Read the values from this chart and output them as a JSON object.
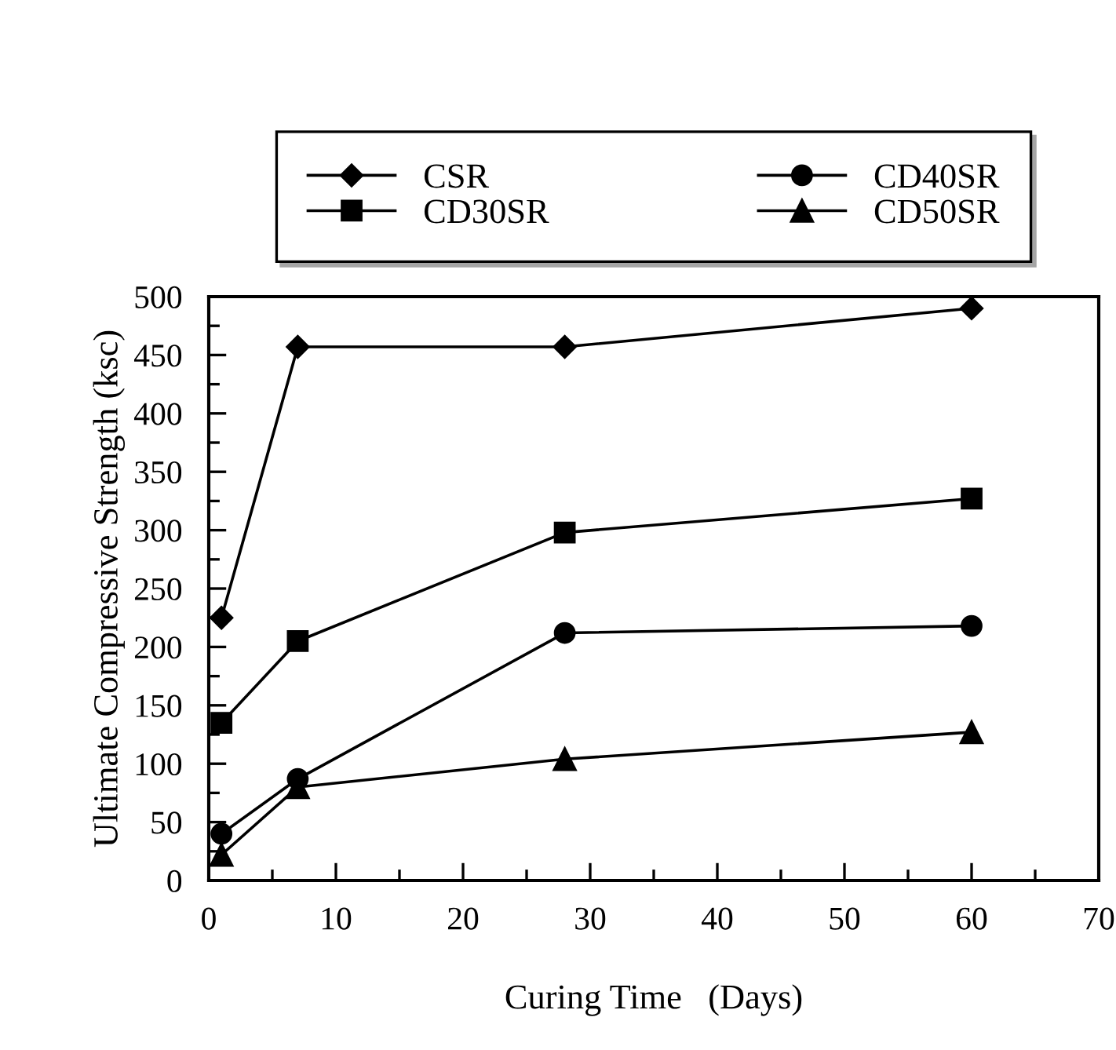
{
  "chart_data": {
    "type": "line",
    "xlabel": "Curing Time   (Days)",
    "ylabel": "Ultimate Compressive Strength (ksc)",
    "x": [
      1,
      7,
      28,
      60
    ],
    "series": [
      {
        "name": "CSR",
        "color": "#000000",
        "marker": "diamond",
        "values": [
          225,
          457,
          457,
          490
        ]
      },
      {
        "name": "CD30SR",
        "color": "#000000",
        "marker": "square",
        "values": [
          135,
          205,
          298,
          327
        ]
      },
      {
        "name": "CD40SR",
        "color": "#000000",
        "marker": "circle",
        "values": [
          40,
          87,
          212,
          218
        ]
      },
      {
        "name": "CD50SR",
        "color": "#000000",
        "marker": "triangle",
        "values": [
          22,
          80,
          104,
          127
        ]
      }
    ],
    "xlim": [
      0,
      70
    ],
    "xticks": [
      0,
      10,
      20,
      30,
      40,
      50,
      60,
      70
    ],
    "ylim": [
      0,
      500
    ],
    "yticks": [
      0,
      50,
      100,
      150,
      200,
      250,
      300,
      350,
      400,
      450,
      500
    ],
    "grid": false,
    "legend": "top",
    "line_style": "solid"
  }
}
